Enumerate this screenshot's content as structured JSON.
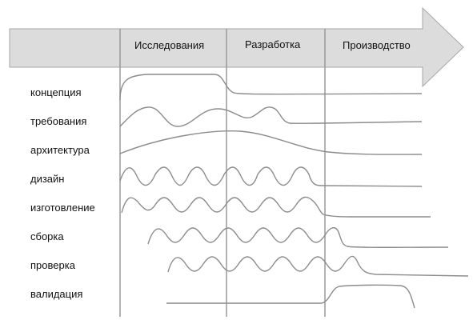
{
  "phases": [
    "Исследования",
    "Разработка",
    "Производство"
  ],
  "rows": [
    "концепция",
    "требования",
    "архитектура",
    "дизайн",
    "изготовление",
    "сборка",
    "проверка",
    "валидация"
  ],
  "colors": {
    "arrow_fill": "#dcdcdc",
    "arrow_stroke": "#a6a6a6",
    "grid": "#9a9a9a",
    "curve": "#8c8c8c",
    "text": "#111111"
  }
}
